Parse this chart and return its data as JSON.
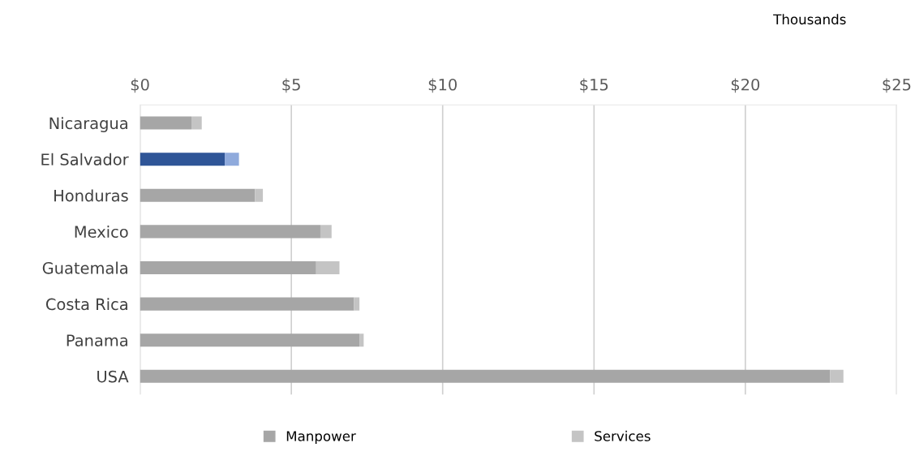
{
  "chart_data": {
    "type": "bar",
    "orientation": "horizontal",
    "stacked": true,
    "categories": [
      "Nicaragua",
      "El Salvador",
      "Honduras",
      "Mexico",
      "Guatemala",
      "Costa Rica",
      "Panama",
      "USA"
    ],
    "series": [
      {
        "name": "Manpower",
        "color": "#a6a6a6",
        "colors": [
          "#a6a6a6",
          "#2f5597",
          "#a6a6a6",
          "#a6a6a6",
          "#a6a6a6",
          "#a6a6a6",
          "#a6a6a6",
          "#a6a6a6"
        ],
        "values": [
          1.7,
          2.8,
          3.8,
          5.96,
          5.82,
          7.07,
          7.25,
          22.8
        ]
      },
      {
        "name": "Services",
        "color": "#c4c4c4",
        "colors": [
          "#c4c4c4",
          "#8faadc",
          "#c4c4c4",
          "#c4c4c4",
          "#c4c4c4",
          "#c4c4c4",
          "#c4c4c4",
          "#c4c4c4"
        ],
        "values": [
          0.34,
          0.47,
          0.26,
          0.37,
          0.77,
          0.18,
          0.14,
          0.44
        ]
      }
    ],
    "xlim": [
      0,
      25
    ],
    "xticks": [
      {
        "value": 0,
        "label": "$0"
      },
      {
        "value": 5,
        "label": "$5"
      },
      {
        "value": 10,
        "label": "$10"
      },
      {
        "value": 15,
        "label": "$15"
      },
      {
        "value": 20,
        "label": "$20"
      },
      {
        "value": 25,
        "label": "$25"
      }
    ],
    "grid": "x",
    "legend": "bottom",
    "annotations": [
      "Thousands"
    ]
  }
}
